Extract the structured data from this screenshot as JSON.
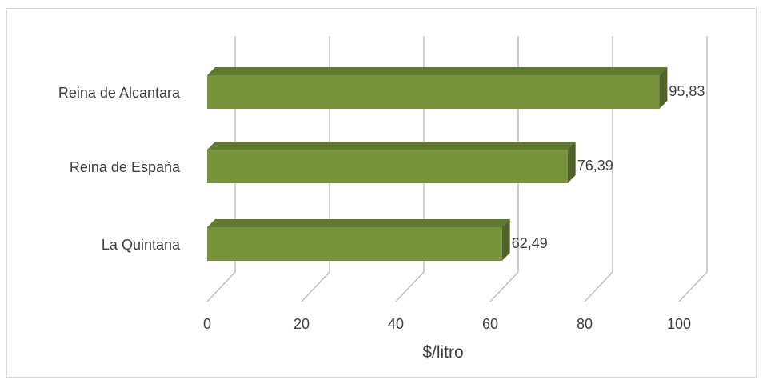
{
  "chart_data": {
    "type": "bar",
    "orientation": "horizontal",
    "style": "3d",
    "categories": [
      "Reina de Alcantara",
      "Reina de España",
      "La Quintana"
    ],
    "values": [
      95.83,
      76.39,
      62.49
    ],
    "value_labels": [
      "95,83",
      "76,39",
      "62,49"
    ],
    "xlabel": "$/litro",
    "xlim": [
      0,
      100
    ],
    "xticks": [
      0,
      20,
      40,
      60,
      80,
      100
    ],
    "xtick_labels": [
      "0",
      "20",
      "40",
      "60",
      "80",
      "100"
    ],
    "grid": true,
    "legend": "none",
    "colors": {
      "bar_front": "#77933c",
      "bar_top": "#5f7a2e",
      "bar_side": "#4f6228",
      "gridline": "#bfbfbf",
      "text": "#404040"
    }
  }
}
